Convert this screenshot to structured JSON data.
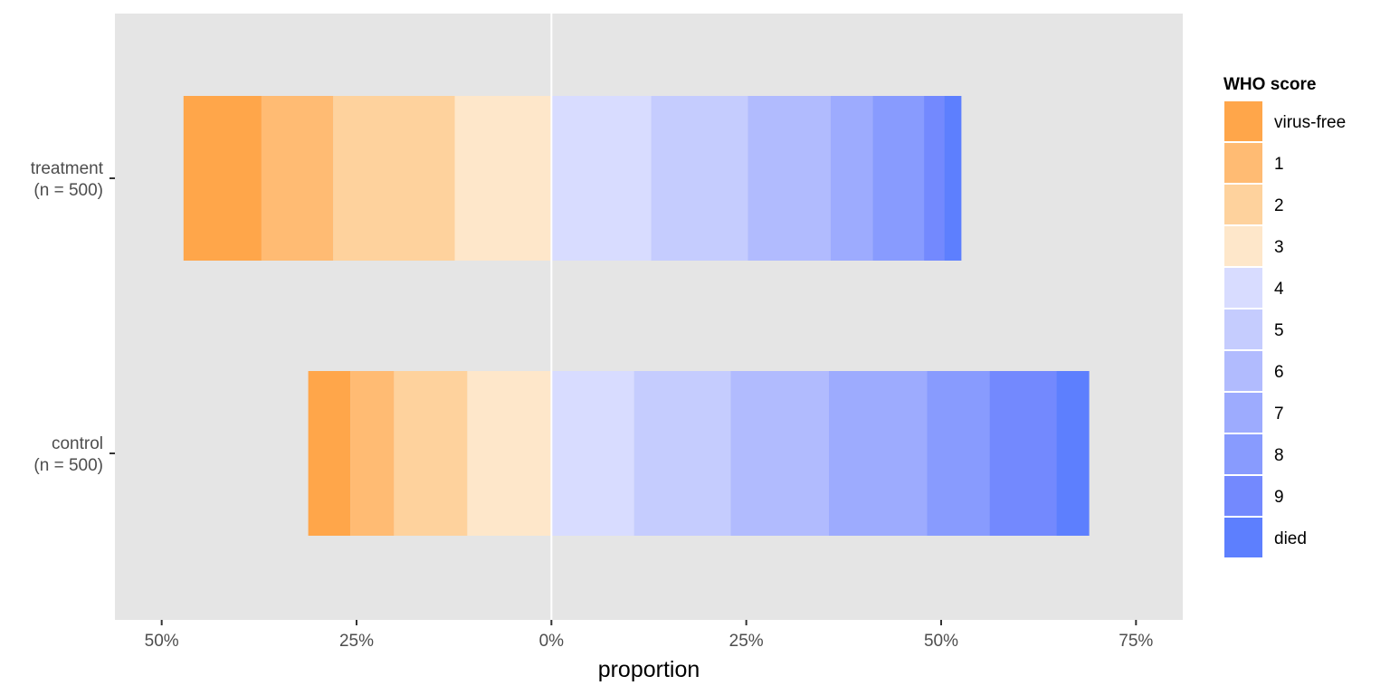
{
  "chart_data": {
    "type": "bar",
    "orientation": "horizontal",
    "stacking": "diverging",
    "xlabel": "proportion",
    "ylabel": "",
    "xlim": [
      -0.56,
      0.81
    ],
    "x_ticks": [
      -0.5,
      -0.25,
      0,
      0.25,
      0.5,
      0.75
    ],
    "x_tick_labels": [
      "50%",
      "25%",
      "0%",
      "25%",
      "50%",
      "75%"
    ],
    "grid": false,
    "zero_line": true,
    "panel_background": "#e5e5e5",
    "legend_title": "WHO score",
    "legend_position": "right",
    "levels": [
      {
        "label": "virus-free",
        "side": "left",
        "color": "#FFA64A"
      },
      {
        "label": "1",
        "side": "left",
        "color": "#FFBB73"
      },
      {
        "label": "2",
        "side": "left",
        "color": "#FED29D"
      },
      {
        "label": "3",
        "side": "left",
        "color": "#FEE7CA"
      },
      {
        "label": "4",
        "side": "right",
        "color": "#D8DCFF"
      },
      {
        "label": "5",
        "side": "right",
        "color": "#C5CCFE"
      },
      {
        "label": "6",
        "side": "right",
        "color": "#B1BBFE"
      },
      {
        "label": "7",
        "side": "right",
        "color": "#9DABFE"
      },
      {
        "label": "8",
        "side": "right",
        "color": "#889BFE"
      },
      {
        "label": "9",
        "side": "right",
        "color": "#7389FE"
      },
      {
        "label": "died",
        "side": "right",
        "color": "#5D7FFE"
      }
    ],
    "groups": [
      {
        "label": [
          "treatment",
          "(n = 500)"
        ],
        "values": [
          0.1,
          0.092,
          0.156,
          0.124,
          0.128,
          0.124,
          0.106,
          0.054,
          0.066,
          0.026,
          0.022
        ]
      },
      {
        "label": [
          "control",
          "(n = 500)"
        ],
        "values": [
          0.054,
          0.056,
          0.094,
          0.108,
          0.106,
          0.124,
          0.126,
          0.126,
          0.08,
          0.086,
          0.042
        ]
      }
    ]
  }
}
